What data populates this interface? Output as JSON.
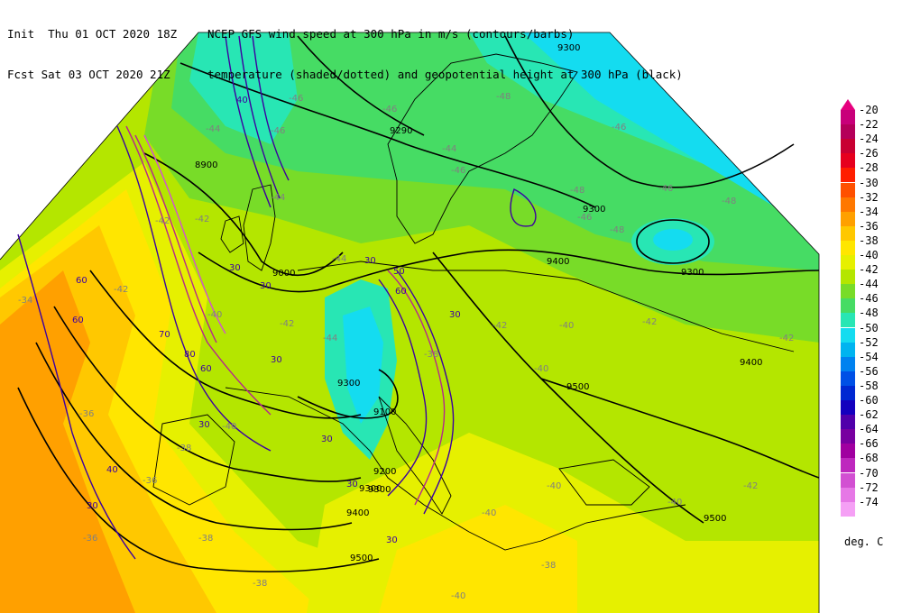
{
  "header": {
    "line1_left": "Init  Thu 01 OCT 2020 18Z",
    "line1_right": "NCEP GFS wind speed at 300 hPa in m/s (contours/barbs)",
    "line2_left": "Fcst Sat 03 OCT 2020 21Z",
    "line2_right": "temperature (shaded/dotted) and geopotential height at 300 hPa (black)"
  },
  "legend": {
    "top_arrow_color": "#e6007e",
    "entries": [
      {
        "label": "-20",
        "color": "#c8007a"
      },
      {
        "label": "-22",
        "color": "#b4005a"
      },
      {
        "label": "-24",
        "color": "#c80032"
      },
      {
        "label": "-26",
        "color": "#e6001e"
      },
      {
        "label": "-28",
        "color": "#ff1e00"
      },
      {
        "label": "-30",
        "color": "#ff5000"
      },
      {
        "label": "-32",
        "color": "#ff7800"
      },
      {
        "label": "-34",
        "color": "#ffa000"
      },
      {
        "label": "-36",
        "color": "#ffc800"
      },
      {
        "label": "-38",
        "color": "#ffe600"
      },
      {
        "label": "-40",
        "color": "#e6f000"
      },
      {
        "label": "-42",
        "color": "#b4e600"
      },
      {
        "label": "-44",
        "color": "#78dc28"
      },
      {
        "label": "-46",
        "color": "#46dc64"
      },
      {
        "label": "-48",
        "color": "#28e6b4"
      },
      {
        "label": "-50",
        "color": "#14dcf0"
      },
      {
        "label": "-52",
        "color": "#00b4f0"
      },
      {
        "label": "-54",
        "color": "#0082f0"
      },
      {
        "label": "-56",
        "color": "#0050e6"
      },
      {
        "label": "-58",
        "color": "#0028d2"
      },
      {
        "label": "-60",
        "color": "#1400be"
      },
      {
        "label": "-62",
        "color": "#5000aa"
      },
      {
        "label": "-64",
        "color": "#7800a0"
      },
      {
        "label": "-66",
        "color": "#a000a0"
      },
      {
        "label": "-68",
        "color": "#be28be"
      },
      {
        "label": "-70",
        "color": "#d250d2"
      },
      {
        "label": "-72",
        "color": "#e678e6"
      },
      {
        "label": "-74",
        "color": "#f5a0f5"
      }
    ]
  },
  "units": "deg. C",
  "map": {
    "height_labels": [
      "9300",
      "9290",
      "8900",
      "9300",
      "9300",
      "9400",
      "9000",
      "9300",
      "9300",
      "9400",
      "9500",
      "9100",
      "9200",
      "9300",
      "9400",
      "9500",
      "9500"
    ],
    "wind_labels": [
      "40",
      "30",
      "30",
      "30",
      "50",
      "60",
      "30",
      "60",
      "60",
      "70",
      "80",
      "60",
      "30",
      "30",
      "30",
      "40",
      "30",
      "30",
      "30"
    ],
    "temp_labels": [
      "-46",
      "-46",
      "-48",
      "-46",
      "-44",
      "-42",
      "-44",
      "-46",
      "-46",
      "-48",
      "-48",
      "-48",
      "-46",
      "-46",
      "-44",
      "-44",
      "-42",
      "-42",
      "-40",
      "-40",
      "-42",
      "-42",
      "-40",
      "-40",
      "-40",
      "-40",
      "-40",
      "-42",
      "-38",
      "-36",
      "-36",
      "-34",
      "-38",
      "-38",
      "-40",
      "-42",
      "-42",
      "-44",
      "-36",
      "-38",
      "-38"
    ]
  }
}
